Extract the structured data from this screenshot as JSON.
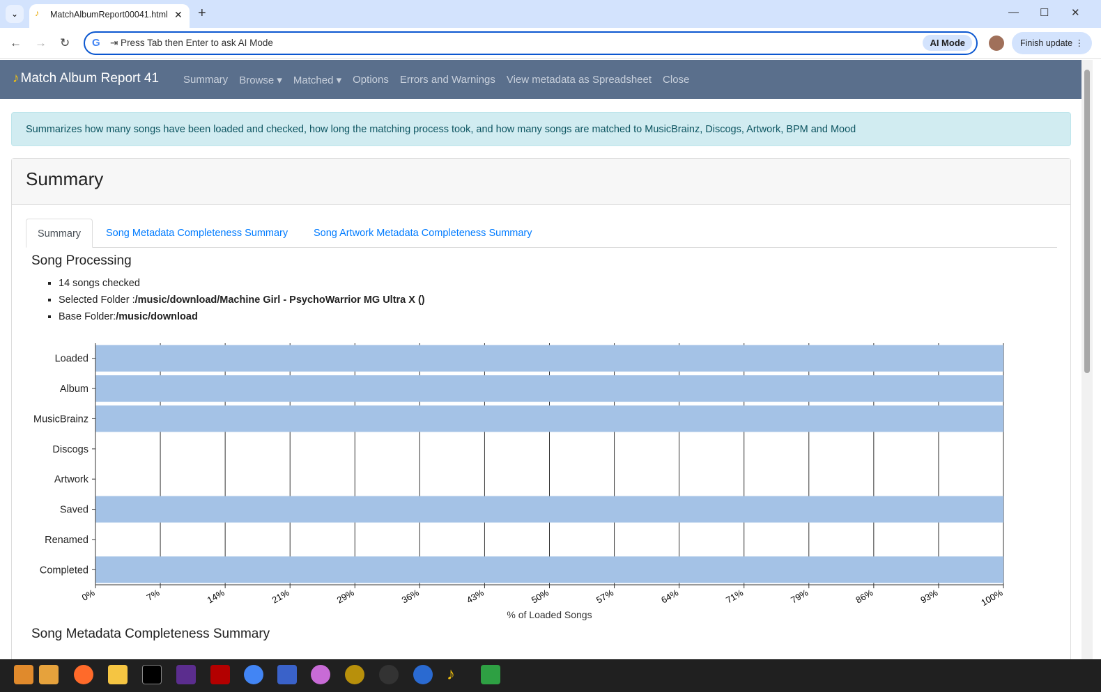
{
  "browser": {
    "tab_title": "MatchAlbumReport00041.html",
    "omnibox_placeholder": "⇥ Press Tab then Enter to ask AI Mode",
    "ai_mode": "AI Mode",
    "finish_update": "Finish update ⋮"
  },
  "navbar": {
    "brand": "Match Album Report 41",
    "items": [
      "Summary",
      "Browse ▾",
      "Matched ▾",
      "Options",
      "Errors and Warnings",
      "View metadata as Spreadsheet",
      "Close"
    ]
  },
  "alert": "Summarizes how many songs have been loaded and checked, how long the matching process took, and how many songs are matched to MusicBrainz, Discogs, Artwork, BPM and Mood",
  "card": {
    "title": "Summary",
    "tabs": [
      "Summary",
      "Song Metadata Completeness Summary",
      "Song Artwork Metadata Completeness Summary"
    ]
  },
  "processing": {
    "heading": "Song Processing",
    "items": [
      {
        "label": "14 songs checked",
        "value": ""
      },
      {
        "label": "Selected Folder :",
        "value": "/music/download/Machine Girl - PsychoWarrior MG Ultra X ()"
      },
      {
        "label": "Base Folder:",
        "value": "/music/download"
      }
    ]
  },
  "chart_data": {
    "type": "bar",
    "orientation": "horizontal",
    "categories": [
      "Loaded",
      "Album",
      "MusicBrainz",
      "Discogs",
      "Artwork",
      "Saved",
      "Renamed",
      "Completed"
    ],
    "values": [
      100,
      100,
      100,
      0,
      0,
      100,
      0,
      100
    ],
    "xlabel": "% of Loaded Songs",
    "xlim": [
      0,
      100
    ],
    "xticks": [
      "0%",
      "7%",
      "14%",
      "21%",
      "29%",
      "36%",
      "43%",
      "50%",
      "57%",
      "64%",
      "71%",
      "79%",
      "86%",
      "93%",
      "100%"
    ],
    "grid": true,
    "color": "#a4c2e6"
  },
  "next_heading": "Song Metadata Completeness Summary"
}
